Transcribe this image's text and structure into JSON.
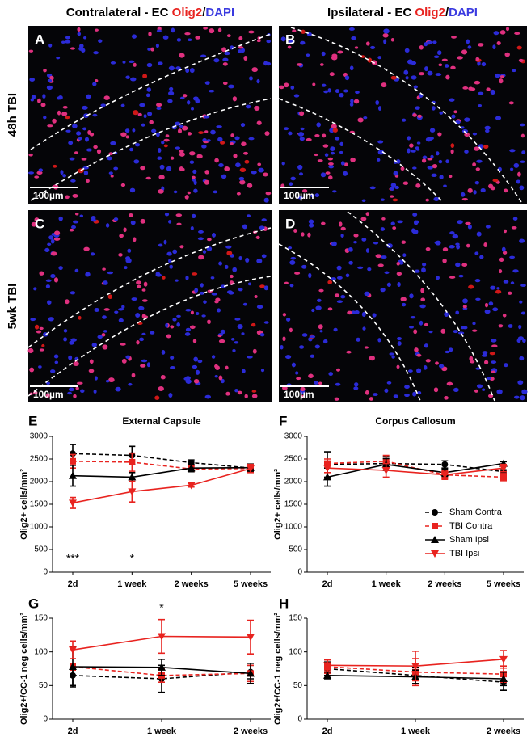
{
  "header": {
    "columns": [
      {
        "text": "Contralateral - EC ",
        "stain1": "Olig2",
        "sep": "/",
        "stain2": "DAPI"
      },
      {
        "text": "Ipsilateral - EC ",
        "stain1": "Olig2",
        "sep": "/",
        "stain2": "DAPI"
      }
    ]
  },
  "rows": [
    "48h TBI",
    "5wk TBI"
  ],
  "images": [
    {
      "label": "A",
      "scale_bar": "100µm"
    },
    {
      "label": "B",
      "scale_bar": "100µm"
    },
    {
      "label": "C",
      "scale_bar": "100µm"
    },
    {
      "label": "D",
      "scale_bar": "100µm"
    }
  ],
  "chart_data": [
    {
      "type": "line",
      "panel": "E",
      "title": "External Capsule",
      "y_label": "Olig2+ cells/mm²",
      "categories": [
        "2d",
        "1 week",
        "2 weeks",
        "5 weeks"
      ],
      "ylim": [
        0,
        3000
      ],
      "yticks": [
        0,
        500,
        1000,
        1500,
        2000,
        2500,
        3000
      ],
      "annotations": [
        "***",
        "*",
        null,
        null
      ],
      "annotation_position": "below",
      "series": [
        {
          "name": "Sham Contra",
          "color": "#000000",
          "dash": true,
          "marker": "circle",
          "values": [
            2620,
            2580,
            2420,
            2300
          ],
          "errors": [
            200,
            200,
            60,
            50
          ]
        },
        {
          "name": "TBI Contra",
          "color": "#e8231f",
          "dash": true,
          "marker": "square",
          "values": [
            2450,
            2430,
            2280,
            2290
          ],
          "errors": [
            150,
            200,
            60,
            60
          ]
        },
        {
          "name": "Sham Ipsi",
          "color": "#000000",
          "dash": false,
          "marker": "triangle",
          "values": [
            2130,
            2100,
            2300,
            2310
          ],
          "errors": [
            230,
            100,
            80,
            80
          ]
        },
        {
          "name": "TBI Ipsi",
          "color": "#e8231f",
          "dash": false,
          "marker": "triangle-down",
          "values": [
            1530,
            1780,
            1920,
            2290
          ],
          "errors": [
            120,
            230,
            40,
            90
          ]
        }
      ]
    },
    {
      "type": "line",
      "panel": "F",
      "title": "Corpus Callosum",
      "y_label": "Olig2+ cells/mm²",
      "categories": [
        "2d",
        "1 week",
        "2 weeks",
        "5 weeks"
      ],
      "ylim": [
        0,
        3000
      ],
      "yticks": [
        0,
        500,
        1000,
        1500,
        2000,
        2500,
        3000
      ],
      "legend": "center-right",
      "series": [
        {
          "name": "Sham Contra",
          "color": "#000000",
          "dash": true,
          "marker": "circle",
          "values": [
            2380,
            2400,
            2380,
            2220
          ],
          "errors": [
            280,
            150,
            80,
            40
          ]
        },
        {
          "name": "TBI Contra",
          "color": "#e8231f",
          "dash": true,
          "marker": "square",
          "values": [
            2400,
            2450,
            2150,
            2100
          ],
          "errors": [
            100,
            130,
            100,
            80
          ]
        },
        {
          "name": "Sham Ipsi",
          "color": "#000000",
          "dash": false,
          "marker": "triangle",
          "values": [
            2100,
            2380,
            2200,
            2400
          ],
          "errors": [
            200,
            130,
            80,
            40
          ]
        },
        {
          "name": "TBI Ipsi",
          "color": "#e8231f",
          "dash": false,
          "marker": "triangle-down",
          "values": [
            2300,
            2250,
            2150,
            2300
          ],
          "errors": [
            100,
            150,
            80,
            80
          ]
        }
      ]
    },
    {
      "type": "line",
      "panel": "G",
      "y_label": "Olig2+/CC-1 neg cells/mm²",
      "categories": [
        "2d",
        "1 week",
        "2 weeks"
      ],
      "ylim": [
        0,
        150
      ],
      "yticks": [
        0,
        50,
        100,
        150
      ],
      "annotations": [
        null,
        "*",
        null
      ],
      "annotation_position": "above",
      "series": [
        {
          "name": "Sham Contra",
          "color": "#000000",
          "dash": true,
          "marker": "circle",
          "values": [
            65,
            60,
            70
          ],
          "errors": [
            15,
            20,
            10
          ]
        },
        {
          "name": "TBI Contra",
          "color": "#e8231f",
          "dash": true,
          "marker": "square",
          "values": [
            78,
            65,
            68
          ],
          "errors": [
            5,
            10,
            12
          ]
        },
        {
          "name": "Sham Ipsi",
          "color": "#000000",
          "dash": false,
          "marker": "triangle",
          "values": [
            78,
            77,
            68
          ],
          "errors": [
            30,
            12,
            15
          ]
        },
        {
          "name": "TBI Ipsi",
          "color": "#e8231f",
          "dash": false,
          "marker": "triangle-down",
          "values": [
            103,
            123,
            122
          ],
          "errors": [
            13,
            25,
            25
          ]
        }
      ]
    },
    {
      "type": "line",
      "panel": "H",
      "y_label": "Olig2+/CC-1 neg cells/mm²",
      "categories": [
        "2d",
        "1 week",
        "2 weeks"
      ],
      "ylim": [
        0,
        150
      ],
      "yticks": [
        0,
        50,
        100,
        150
      ],
      "series": [
        {
          "name": "Sham Contra",
          "color": "#000000",
          "dash": true,
          "marker": "circle",
          "values": [
            75,
            65,
            55
          ],
          "errors": [
            10,
            12,
            12
          ]
        },
        {
          "name": "TBI Contra",
          "color": "#e8231f",
          "dash": true,
          "marker": "square",
          "values": [
            78,
            70,
            67
          ],
          "errors": [
            10,
            20,
            12
          ]
        },
        {
          "name": "Sham Ipsi",
          "color": "#000000",
          "dash": false,
          "marker": "triangle",
          "values": [
            65,
            63,
            60
          ],
          "errors": [
            5,
            10,
            10
          ]
        },
        {
          "name": "TBI Ipsi",
          "color": "#e8231f",
          "dash": false,
          "marker": "triangle-down",
          "values": [
            80,
            79,
            89
          ],
          "errors": [
            8,
            22,
            13
          ]
        }
      ]
    }
  ]
}
